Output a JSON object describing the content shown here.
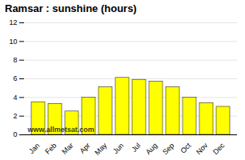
{
  "chart_data": {
    "type": "bar",
    "title": "Ramsar : sunshine (hours)",
    "categories": [
      "Jan",
      "Feb",
      "Mar",
      "Apr",
      "May",
      "Jun",
      "Jul",
      "Aug",
      "Sep",
      "Oct",
      "Nov",
      "Dec"
    ],
    "values": [
      3.5,
      3.3,
      2.5,
      4.0,
      5.1,
      6.1,
      5.9,
      5.7,
      5.1,
      4.0,
      3.4,
      3.0
    ],
    "color": "#ffff00",
    "ylim": [
      0,
      12
    ],
    "yticks": [
      0,
      2,
      4,
      6,
      8,
      10,
      12
    ],
    "grid": true,
    "annotations": [
      "www.allmetsat.com"
    ]
  }
}
